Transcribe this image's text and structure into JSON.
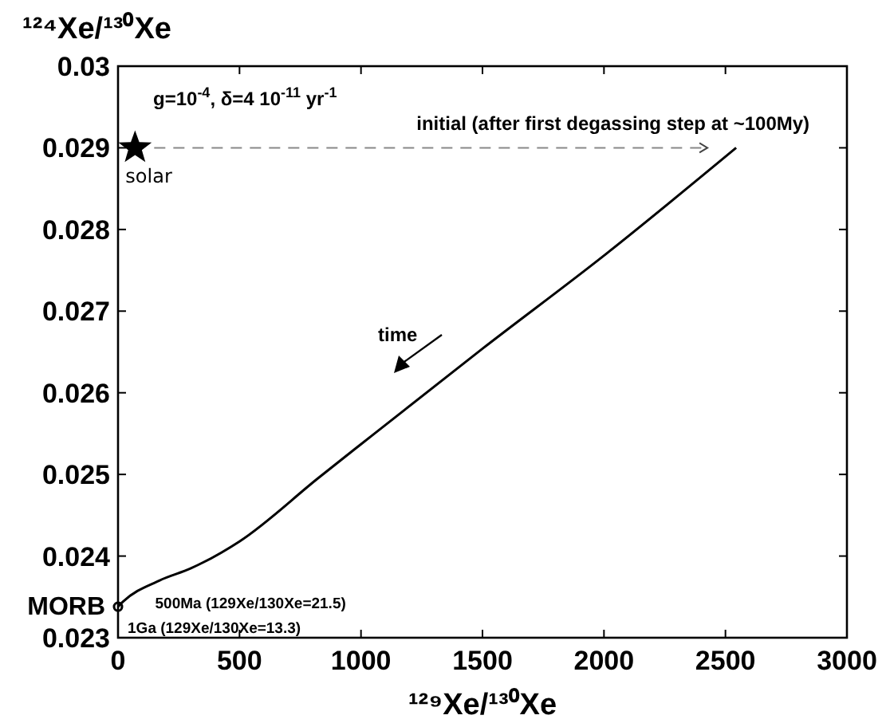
{
  "chart_data": {
    "type": "line",
    "xlabel": "¹²⁹Xe/¹³⁰Xe",
    "ylabel": "¹²⁴Xe/¹³⁰Xe",
    "xlim": [
      0,
      3000
    ],
    "xticks": [
      0,
      500,
      1000,
      1500,
      2000,
      2500,
      3000
    ],
    "ylim": [
      0.023,
      0.03
    ],
    "yticks": [
      0.023,
      0.024,
      0.025,
      0.026,
      0.027,
      0.028,
      0.029,
      0.03
    ],
    "series": [
      {
        "color": "#000000",
        "x": [
          0,
          20,
          170,
          300,
          500,
          826,
          1000,
          1500,
          2000,
          2544
        ],
        "values": [
          0.02338,
          0.02344,
          0.0237,
          0.02385,
          0.02418,
          0.02496,
          0.02537,
          0.02654,
          0.02768,
          0.029
        ],
        "line_style": "solid",
        "marker": "none"
      },
      {
        "type": "scatter",
        "name": "solar",
        "color": "#000000",
        "x": [
          70
        ],
        "values": [
          0.029
        ],
        "marker": "star"
      },
      {
        "type": "scatter",
        "name": "MORB",
        "color": "#000000",
        "x": [
          0
        ],
        "values": [
          0.02338
        ],
        "marker": "circle"
      }
    ],
    "annotations": [
      "g=10$^{-4}$, δ=4 10$^{-11}$ yr$^{-1}$",
      {
        "text": "initial (after first degassing step at ~100My)",
        "x": 2544,
        "y": 0.029
      },
      "time",
      {
        "text": "500Ma (129Xe/130Xe=21.5)",
        "x": 21.5,
        "y": 0.02344
      },
      {
        "text": "1Ga (129Xe/130Xe=13.3)",
        "x": 13.3,
        "y": 0.02341
      }
    ]
  }
}
